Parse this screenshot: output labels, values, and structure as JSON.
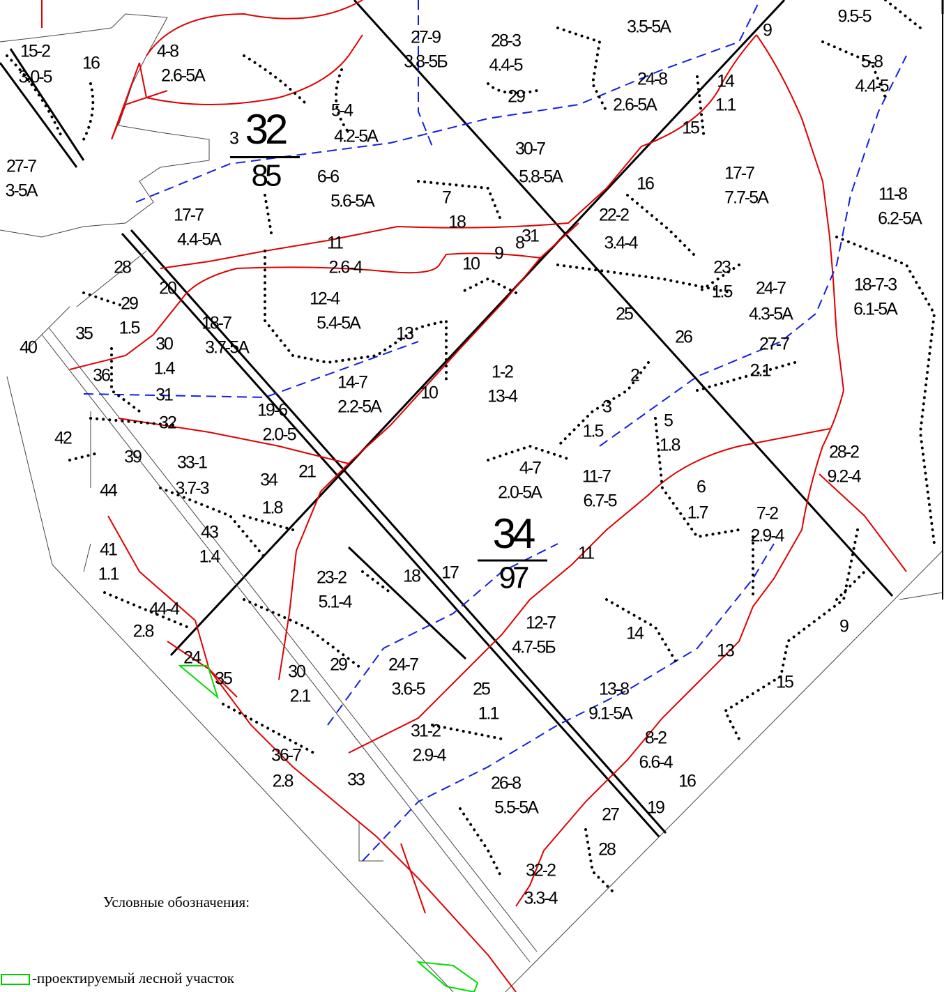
{
  "map": {
    "blocks": [
      {
        "prefix": "3",
        "number": "32",
        "area": "85"
      },
      {
        "number": "34",
        "area": "97"
      }
    ],
    "labels": [
      "15-2",
      "3.0-5",
      "16",
      "27-7",
      "3-5А",
      "4-8",
      "2.6-5А",
      "27-9",
      "3.8-5Б",
      "28-3",
      "4.4-5",
      "29",
      "3.5-5А",
      "9.5-5",
      "9",
      "5-8",
      "4.4-5",
      "24-8",
      "2.6-5А",
      "14",
      "1.1",
      "15",
      "5-4",
      "4.2-5А",
      "6-6",
      "5.6-5А",
      "30-7",
      "5.8-5А",
      "16",
      "17-7",
      "7.7-5А",
      "11-8",
      "6.2-5А",
      "17-7",
      "4.4-5А",
      "7",
      "18",
      "22-2",
      "3.4-4",
      "11",
      "2.6-4",
      "31",
      "10",
      "9",
      "8",
      "23",
      "1.5",
      "24-7",
      "4.3-5А",
      "18-7-3",
      "6.1-5А",
      "28",
      "20",
      "29",
      "1.5",
      "12-4",
      "5.4-5А",
      "18-7",
      "3.7-5А",
      "30",
      "1.4",
      "35",
      "40",
      "13",
      "25",
      "26",
      "27-7",
      "2.1",
      "36",
      "31",
      "1-2",
      "13-4",
      "2",
      "14-7",
      "2.2-5А",
      "10",
      "3",
      "1.5",
      "5",
      "1.8",
      "32",
      "19-6",
      "2.0-5",
      "42",
      "39",
      "33-1",
      "3.7-3",
      "34",
      "1.8",
      "21",
      "44",
      "4-7",
      "2.0-5А",
      "11-7",
      "6.7-5",
      "6",
      "1.7",
      "7-2",
      "2.9-4",
      "28-2",
      "9.2-4",
      "43",
      "1.4",
      "41",
      "1.1",
      "11",
      "18",
      "17",
      "23-2",
      "5.1-4",
      "44-4",
      "2.8",
      "12-7",
      "4.7-5Б",
      "14",
      "9",
      "13",
      "24",
      "35",
      "30",
      "2.1",
      "29",
      "24-7",
      "3.6-5",
      "25",
      "1.1",
      "13-8",
      "9.1-5А",
      "15",
      "31-2",
      "2.9-4",
      "8-2",
      "6.6-4",
      "36-7",
      "2.8",
      "33",
      "16",
      "26-8",
      "5.5-5А",
      "19",
      "27",
      "28",
      "32-2",
      "3.3-4"
    ]
  },
  "legend": {
    "title": "Условные обозначения:",
    "items": [
      {
        "label": "-проектируемый лесной участок"
      }
    ]
  }
}
